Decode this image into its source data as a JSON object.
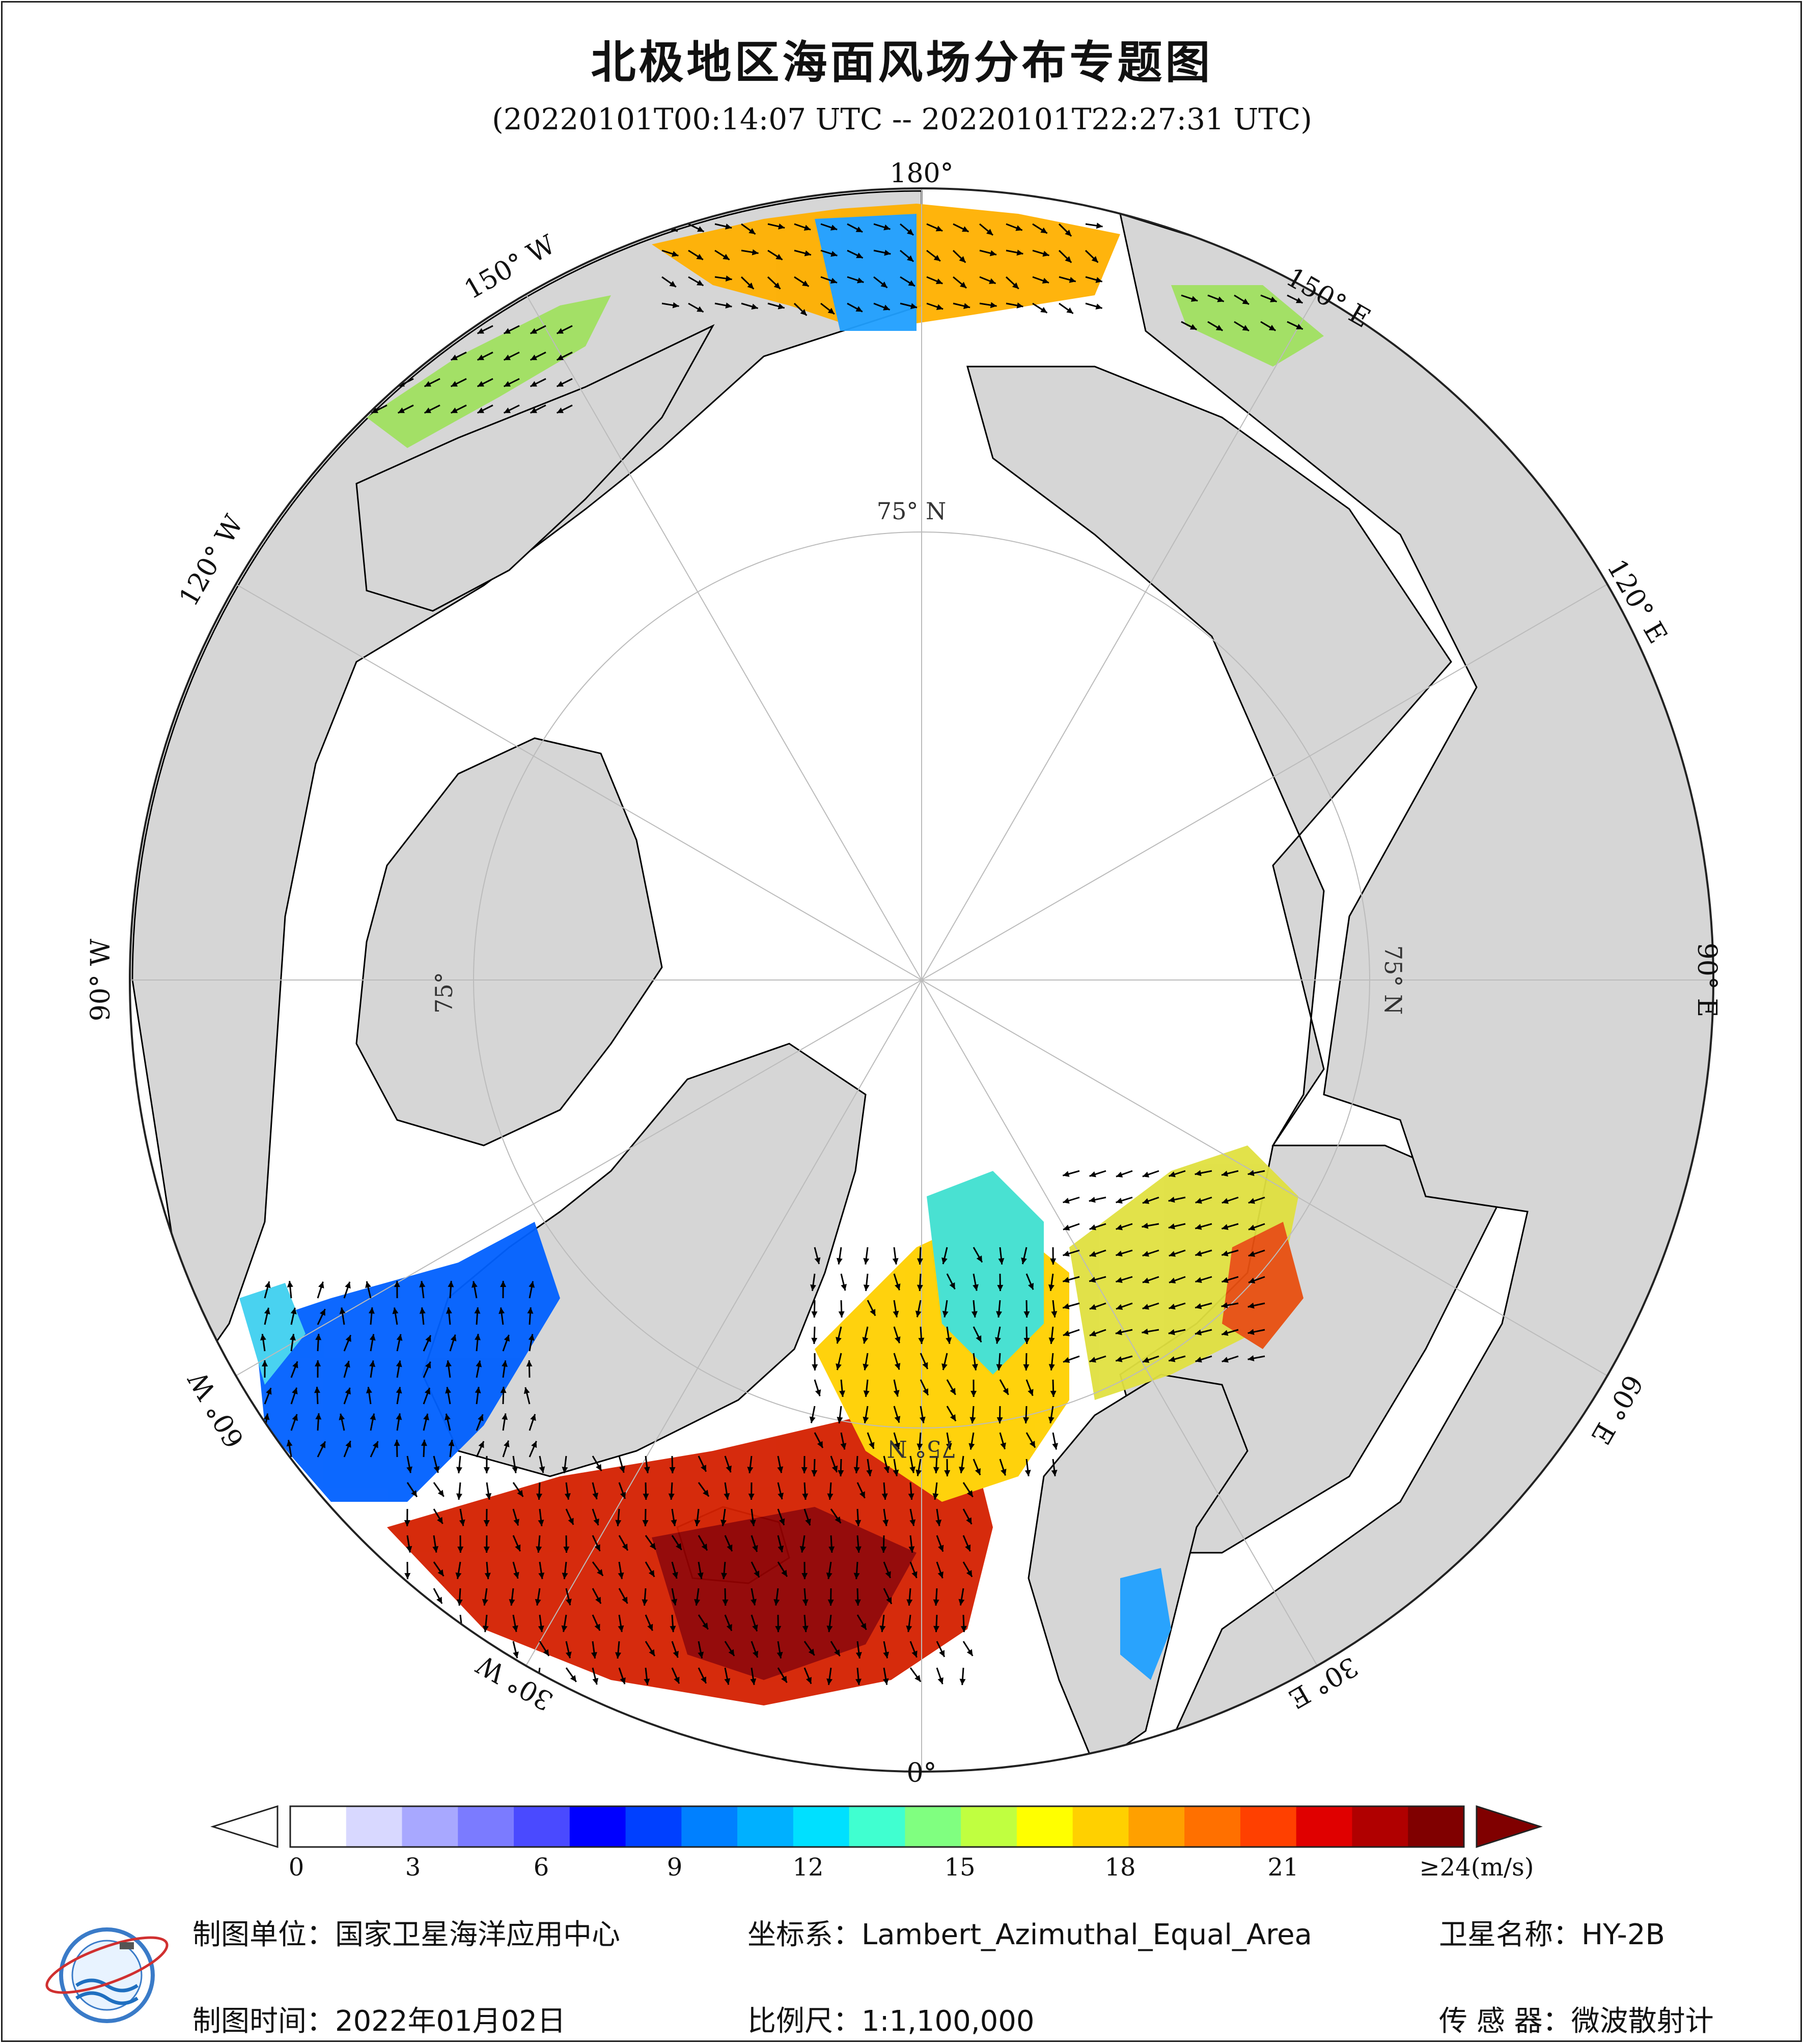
{
  "title": "北极地区海面风场分布专题图",
  "subtitle": "(20220101T00:14:07 UTC -- 20220101T22:27:31 UTC)",
  "map": {
    "projection_view": "north-polar azimuthal",
    "lon_labels": {
      "top": "180°",
      "top_right": "150° E",
      "right_upper": "120° E",
      "right": "90° E",
      "right_lower": "60° E",
      "bottom_right": "30° E",
      "bottom": "0°",
      "bottom_left": "30° W",
      "left_lower": "60° W",
      "left": "90° W",
      "left_upper": "120° W",
      "top_left": "150° W"
    },
    "lat_labels": {
      "top": "75° N",
      "right": "75° N",
      "left": "75°",
      "bottom": "75° N"
    },
    "colors": {
      "land": "#d6d6d6",
      "ocean_ice": "#ffffff",
      "coast": "#000000",
      "grid": "#bbbbbb"
    }
  },
  "colorbar": {
    "ticks": [
      "0",
      "3",
      "6",
      "9",
      "12",
      "15",
      "18",
      "21",
      "≥24(m/s)"
    ],
    "unit": "m/s",
    "range": [
      0,
      24
    ],
    "colors": [
      "#ffffff",
      "#d8d8ff",
      "#a8a8ff",
      "#7b7bff",
      "#4a4aff",
      "#0000ff",
      "#0040ff",
      "#0080ff",
      "#00b0ff",
      "#00e0ff",
      "#40ffd0",
      "#80ff80",
      "#c0ff40",
      "#ffff00",
      "#ffd000",
      "#ffa000",
      "#ff7000",
      "#ff4000",
      "#e00000",
      "#b00000",
      "#800000"
    ],
    "under_color": "#ffffff",
    "over_color": "#800000"
  },
  "footer": {
    "unit_label": "制图单位：国家卫星海洋应用中心",
    "crs_label": "坐标系：Lambert_Azimuthal_Equal_Area",
    "satellite_label": "卫星名称：HY-2B",
    "date_label": "制图时间：2022年01月02日",
    "scale_label": "比例尺：1:1,100,000",
    "sensor_label": "传 感 器：微波散射计"
  }
}
